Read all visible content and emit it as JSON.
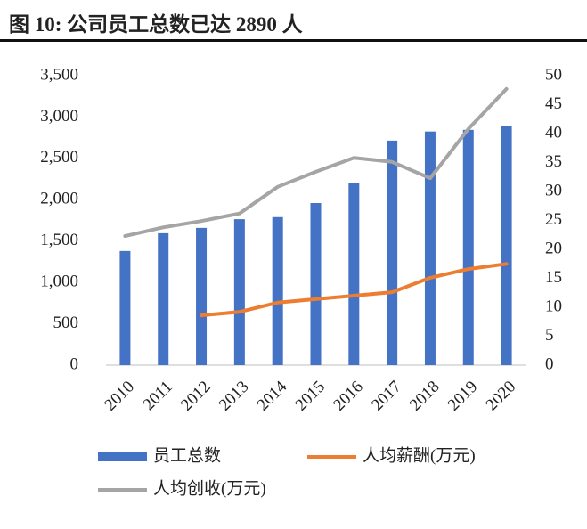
{
  "chart_data": {
    "type": "bar_line",
    "title": "图 10:  公司员工总数已达 2890 人",
    "categories": [
      "2010",
      "2011",
      "2012",
      "2013",
      "2014",
      "2015",
      "2016",
      "2017",
      "2018",
      "2019",
      "2020"
    ],
    "series": [
      {
        "name": "员工总数",
        "type": "bar",
        "color": "#4472c4",
        "values": [
          1380,
          1595,
          1660,
          1765,
          1790,
          1960,
          2200,
          2715,
          2825,
          2845,
          2890
        ]
      },
      {
        "name": "人均薪酬(万元)",
        "type": "line",
        "axis": "y2",
        "color": "#ed7d31",
        "values": [
          null,
          null,
          8.6,
          9.2,
          10.8,
          11.4,
          12.0,
          12.6,
          15.1,
          16.6,
          17.5
        ]
      },
      {
        "name": "人均创收(万元)",
        "type": "line",
        "axis": "y2",
        "color": "#a5a5a5",
        "values": [
          22.3,
          23.8,
          24.9,
          26.2,
          30.8,
          33.4,
          35.8,
          35.1,
          32.3,
          40.8,
          47.7
        ]
      }
    ],
    "ylim": [
      0,
      3500
    ],
    "yticks": [
      0,
      500,
      {
        "value": 1000,
        "label": "1,000"
      },
      {
        "value": 1500,
        "label": "1,500"
      },
      {
        "value": 2000,
        "label": "2,000"
      },
      {
        "value": 2500,
        "label": "2,500"
      },
      {
        "value": 3000,
        "label": "3,000"
      },
      {
        "value": 3500,
        "label": "3,500"
      }
    ],
    "y2lim": [
      0,
      50
    ],
    "y2ticks": [
      0,
      5,
      10,
      15,
      20,
      25,
      30,
      35,
      40,
      45,
      50
    ]
  }
}
